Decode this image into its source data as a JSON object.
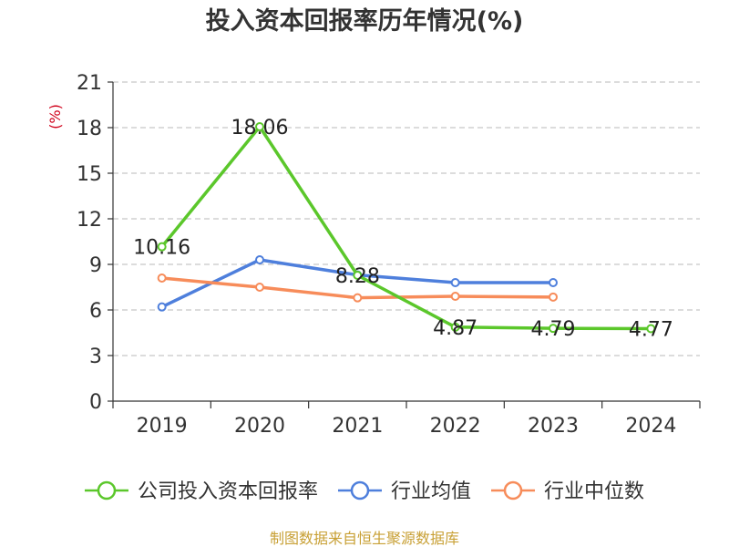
{
  "chart_data": {
    "type": "line",
    "title": "投入资本回报率历年情况(%)",
    "ylabel": "(%)",
    "xlabel": "",
    "categories": [
      "2019",
      "2020",
      "2021",
      "2022",
      "2023",
      "2024"
    ],
    "ylim": [
      0,
      21
    ],
    "yticks": [
      0,
      3,
      6,
      9,
      12,
      15,
      18,
      21
    ],
    "grid": true,
    "legend_position": "bottom",
    "series": [
      {
        "name": "公司投入资本回报率",
        "color": "#5bc72b",
        "values": [
          10.16,
          18.06,
          8.28,
          4.87,
          4.79,
          4.77
        ],
        "labels": [
          "10.16",
          "18.06",
          "8.28",
          "4.87",
          "4.79",
          "4.77"
        ]
      },
      {
        "name": "行业均值",
        "color": "#4e7fdc",
        "values": [
          6.2,
          9.3,
          8.3,
          7.8,
          7.8,
          null
        ]
      },
      {
        "name": "行业中位数",
        "color": "#f78c5a",
        "values": [
          8.1,
          7.5,
          6.8,
          6.9,
          6.85,
          null
        ]
      }
    ]
  },
  "source": "制图数据来自恒生聚源数据库",
  "colors": {
    "axis": "#333333",
    "grid": "#c8c8c8",
    "unit": "#d0021b",
    "source": "#c8a035"
  }
}
